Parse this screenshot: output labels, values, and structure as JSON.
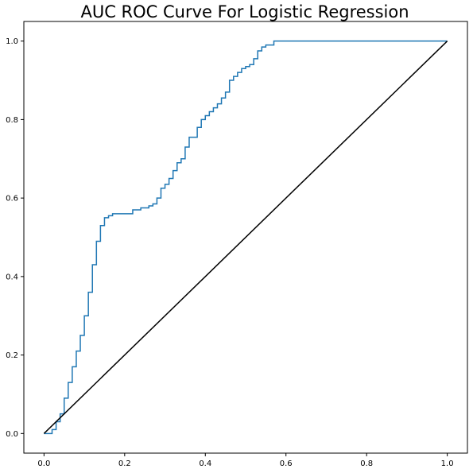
{
  "chart_data": {
    "type": "line",
    "title": "AUC ROC Curve For Logistic Regression",
    "xlabel": "",
    "ylabel": "",
    "xlim": [
      -0.05,
      1.05
    ],
    "ylim": [
      -0.05,
      1.05
    ],
    "xticks": [
      "0.0",
      "0.2",
      "0.4",
      "0.6",
      "0.8",
      "1.0"
    ],
    "yticks": [
      "0.0",
      "0.2",
      "0.4",
      "0.6",
      "0.8",
      "1.0"
    ],
    "grid": false,
    "legend": "none",
    "series": [
      {
        "color": "#1f77b4",
        "x": [
          0.0,
          0.02,
          0.02,
          0.03,
          0.03,
          0.04,
          0.04,
          0.05,
          0.05,
          0.06,
          0.06,
          0.07,
          0.07,
          0.08,
          0.08,
          0.09,
          0.09,
          0.1,
          0.1,
          0.11,
          0.11,
          0.12,
          0.12,
          0.13,
          0.13,
          0.14,
          0.14,
          0.15,
          0.15,
          0.16,
          0.16,
          0.17,
          0.17,
          0.22,
          0.22,
          0.24,
          0.24,
          0.26,
          0.26,
          0.27,
          0.27,
          0.28,
          0.28,
          0.29,
          0.29,
          0.3,
          0.3,
          0.31,
          0.31,
          0.32,
          0.32,
          0.33,
          0.33,
          0.34,
          0.34,
          0.35,
          0.35,
          0.36,
          0.36,
          0.38,
          0.38,
          0.39,
          0.39,
          0.4,
          0.4,
          0.41,
          0.41,
          0.42,
          0.42,
          0.43,
          0.43,
          0.44,
          0.44,
          0.45,
          0.45,
          0.46,
          0.46,
          0.47,
          0.47,
          0.48,
          0.48,
          0.49,
          0.49,
          0.5,
          0.5,
          0.51,
          0.51,
          0.52,
          0.52,
          0.53,
          0.53,
          0.54,
          0.54,
          0.55,
          0.55,
          0.57,
          0.57,
          0.61,
          0.61,
          1.0
        ],
        "y": [
          0.0,
          0.0,
          0.01,
          0.01,
          0.03,
          0.03,
          0.05,
          0.05,
          0.09,
          0.09,
          0.13,
          0.13,
          0.17,
          0.17,
          0.21,
          0.21,
          0.25,
          0.25,
          0.3,
          0.3,
          0.36,
          0.36,
          0.43,
          0.43,
          0.49,
          0.49,
          0.53,
          0.53,
          0.55,
          0.55,
          0.555,
          0.555,
          0.56,
          0.56,
          0.57,
          0.57,
          0.575,
          0.575,
          0.58,
          0.58,
          0.585,
          0.585,
          0.6,
          0.6,
          0.625,
          0.625,
          0.635,
          0.635,
          0.65,
          0.65,
          0.67,
          0.67,
          0.69,
          0.69,
          0.7,
          0.7,
          0.73,
          0.73,
          0.755,
          0.755,
          0.78,
          0.78,
          0.8,
          0.8,
          0.81,
          0.81,
          0.82,
          0.82,
          0.83,
          0.83,
          0.84,
          0.84,
          0.855,
          0.855,
          0.87,
          0.87,
          0.9,
          0.9,
          0.91,
          0.91,
          0.92,
          0.92,
          0.93,
          0.93,
          0.935,
          0.935,
          0.94,
          0.94,
          0.955,
          0.955,
          0.975,
          0.975,
          0.985,
          0.985,
          0.99,
          0.99,
          1.0,
          1.0,
          1.0,
          1.0
        ]
      },
      {
        "color": "#000000",
        "x": [
          0.0,
          1.0
        ],
        "y": [
          0.0,
          1.0
        ]
      }
    ]
  }
}
